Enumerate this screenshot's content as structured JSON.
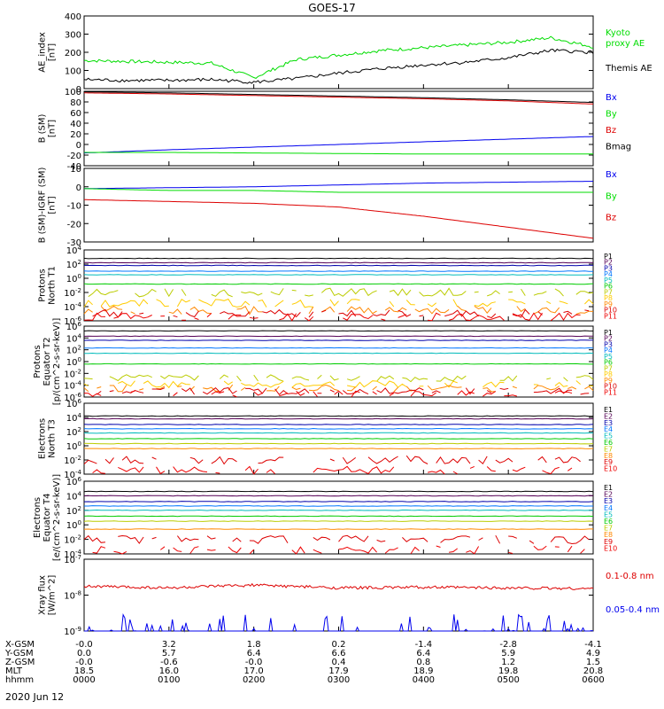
{
  "title": "GOES-17",
  "date": "2020 Jun 12",
  "colors": {
    "black": "#000000",
    "green": "#00dd00",
    "blue": "#0000ee",
    "red": "#dd0000"
  },
  "footer": {
    "row_labels": [
      "X-GSM",
      "Y-GSM",
      "Z-GSM",
      "MLT",
      "hhmm"
    ],
    "columns": [
      [
        "-0.0",
        "0.0",
        "-0.0",
        "18.5",
        "0000"
      ],
      [
        "3.2",
        "5.7",
        "-0.6",
        "16.0",
        "0100"
      ],
      [
        "1.8",
        "6.4",
        "-0.0",
        "17.0",
        "0200"
      ],
      [
        "0.2",
        "6.6",
        "0.4",
        "17.9",
        "0300"
      ],
      [
        "-1.4",
        "6.4",
        "0.8",
        "18.9",
        "0400"
      ],
      [
        "-2.8",
        "5.9",
        "1.2",
        "19.8",
        "0500"
      ],
      [
        "-4.1",
        "4.9",
        "1.5",
        "20.8",
        "0600"
      ]
    ]
  },
  "chart_data": [
    {
      "type": "line",
      "ylabel": [
        "AE_index",
        "[nT]"
      ],
      "ylim": [
        0,
        400
      ],
      "yticks": [
        "400",
        "300",
        "200",
        "100",
        "0"
      ],
      "legend": [
        {
          "text": "Kyoto",
          "color": "#00dd00"
        },
        {
          "text": "proxy AE",
          "color": "#00dd00"
        },
        {
          "text": "Themis AE",
          "color": "#000000"
        }
      ],
      "x": [
        0,
        0.5,
        1,
        1.5,
        2,
        2.5,
        3,
        3.5,
        4,
        4.5,
        5,
        5.5,
        6
      ],
      "series": [
        {
          "name": "Kyoto proxy AE",
          "color": "#00dd00",
          "values": [
            155,
            150,
            145,
            140,
            60,
            160,
            185,
            210,
            225,
            240,
            255,
            280,
            230
          ]
        },
        {
          "name": "Themis AE",
          "color": "#000000",
          "values": [
            50,
            45,
            45,
            50,
            35,
            55,
            85,
            110,
            130,
            145,
            170,
            210,
            200
          ]
        }
      ]
    },
    {
      "type": "line",
      "ylabel": [
        "B (SM)",
        "[nT]"
      ],
      "ylim": [
        -40,
        100
      ],
      "yticks": [
        "100",
        "80",
        "60",
        "40",
        "20",
        "0",
        "-20",
        "-40"
      ],
      "legend": [
        {
          "text": "Bx",
          "color": "#0000ee"
        },
        {
          "text": "By",
          "color": "#00dd00"
        },
        {
          "text": "Bz",
          "color": "#dd0000"
        },
        {
          "text": "Bmag",
          "color": "#000000"
        }
      ],
      "x": [
        0,
        1,
        2,
        3,
        4,
        5,
        6
      ],
      "series": [
        {
          "name": "Bx",
          "color": "#0000ee",
          "values": [
            -16,
            -10,
            -5,
            0,
            5,
            10,
            15
          ]
        },
        {
          "name": "By",
          "color": "#00dd00",
          "values": [
            -15,
            -15,
            -16,
            -17,
            -18,
            -18,
            -18
          ]
        },
        {
          "name": "Bz",
          "color": "#dd0000",
          "values": [
            97,
            95,
            92,
            89,
            86,
            82,
            76
          ]
        },
        {
          "name": "Bmag",
          "color": "#000000",
          "values": [
            99,
            97,
            94,
            91,
            88,
            84,
            79
          ]
        }
      ]
    },
    {
      "type": "line",
      "ylabel": [
        "B (SM)-IGRF (SM)",
        "[nT]"
      ],
      "ylim": [
        -30,
        10
      ],
      "yticks": [
        "10",
        "0",
        "-10",
        "-20",
        "-30"
      ],
      "legend": [
        {
          "text": "Bx",
          "color": "#0000ee"
        },
        {
          "text": "By",
          "color": "#00dd00"
        },
        {
          "text": "Bz",
          "color": "#dd0000"
        }
      ],
      "x": [
        0,
        1,
        2,
        3,
        4,
        5,
        6
      ],
      "series": [
        {
          "name": "Bx",
          "color": "#0000ee",
          "values": [
            -1,
            -0.5,
            0,
            1,
            2,
            2.5,
            3
          ]
        },
        {
          "name": "By",
          "color": "#00dd00",
          "values": [
            -1,
            -2,
            -2,
            -3,
            -3,
            -3,
            -3
          ]
        },
        {
          "name": "Bz",
          "color": "#dd0000",
          "values": [
            -7,
            -8,
            -9,
            -11,
            -16,
            -22,
            -28
          ]
        }
      ]
    },
    {
      "type": "line",
      "ylabel": [
        "Protons",
        "North T1"
      ],
      "log": true,
      "ylim": [
        -6,
        4
      ],
      "yticks": [
        "10^4",
        "10^2",
        "10^0",
        "10^-2",
        "10^-4",
        "10^-6"
      ],
      "channels": [
        {
          "label": "P1",
          "color": "#000000",
          "log": 2.8
        },
        {
          "label": "P2",
          "color": "#550055",
          "log": 2.2
        },
        {
          "label": "P3",
          "color": "#0000aa",
          "log": 1.8
        },
        {
          "label": "P4",
          "color": "#0077ff",
          "log": 1.0
        },
        {
          "label": "P5",
          "color": "#00bbbb",
          "log": 0.5
        },
        {
          "label": "P6",
          "color": "#00cc00",
          "log": -0.8
        },
        {
          "label": "P7",
          "color": "#bbcc00",
          "log": -2.0
        },
        {
          "label": "P8",
          "color": "#ffcc00",
          "log": -3.5
        },
        {
          "label": "P9",
          "color": "#ff8800",
          "log": -4.5
        },
        {
          "label": "P10",
          "color": "#dd0000",
          "log": -5.0
        },
        {
          "label": "P11",
          "color": "#ee0000",
          "log": -5.5
        }
      ]
    },
    {
      "type": "line",
      "ylabel": [
        "Protons",
        "Equator T2",
        "[p/(cm^2-s-sr-keV)]"
      ],
      "log": true,
      "ylim": [
        -6,
        6
      ],
      "yticks": [
        "10^6",
        "10^4",
        "10^2",
        "10^0",
        "10^-2",
        "10^-4",
        "10^-6"
      ],
      "channels": [
        {
          "label": "P1",
          "color": "#000000",
          "log": 5.2
        },
        {
          "label": "P2",
          "color": "#550055",
          "log": 4.3
        },
        {
          "label": "P3",
          "color": "#0000aa",
          "log": 3.6
        },
        {
          "label": "P4",
          "color": "#0077ff",
          "log": 2.3
        },
        {
          "label": "P5",
          "color": "#00bbbb",
          "log": 1.4
        },
        {
          "label": "P6",
          "color": "#00cc00",
          "log": -0.4
        },
        {
          "label": "P7",
          "color": "#bbcc00",
          "log": -2.8
        },
        {
          "label": "P8",
          "color": "#ffcc00",
          "log": -3.8
        },
        {
          "label": "P9",
          "color": "#ff8800",
          "log": -4.5
        },
        {
          "label": "P10",
          "color": "#dd0000",
          "log": -5.0
        },
        {
          "label": "P11",
          "color": "#ee0000",
          "log": -5.5
        }
      ]
    },
    {
      "type": "line",
      "ylabel": [
        "Electrons",
        "North T3"
      ],
      "log": true,
      "ylim": [
        -4,
        6
      ],
      "yticks": [
        "10^6",
        "10^4",
        "10^2",
        "10^0",
        "10^-2",
        "10^-4"
      ],
      "channels": [
        {
          "label": "E1",
          "color": "#000000",
          "log": 4.2
        },
        {
          "label": "E2",
          "color": "#550055",
          "log": 3.8
        },
        {
          "label": "E3",
          "color": "#0000aa",
          "log": 3.0
        },
        {
          "label": "E4",
          "color": "#0077ff",
          "log": 2.4
        },
        {
          "label": "E5",
          "color": "#00bbbb",
          "log": 1.8
        },
        {
          "label": "E6",
          "color": "#00cc00",
          "log": 1.0
        },
        {
          "label": "E7",
          "color": "#bbcc00",
          "log": 0.3
        },
        {
          "label": "E8",
          "color": "#ff8800",
          "log": -0.4
        },
        {
          "label": "E9",
          "color": "#dd0000",
          "log": -2.0
        },
        {
          "label": "E10",
          "color": "#ee0000",
          "log": -3.5
        }
      ]
    },
    {
      "type": "line",
      "ylabel": [
        "Electrons",
        "Equator T4",
        "[e/(cm^2-s-sr-keV)]"
      ],
      "log": true,
      "ylim": [
        -4,
        6
      ],
      "yticks": [
        "10^6",
        "10^4",
        "10^2",
        "10^0",
        "10^-2",
        "10^-4"
      ],
      "channels": [
        {
          "label": "E1",
          "color": "#000000",
          "log": 4.6
        },
        {
          "label": "E2",
          "color": "#550055",
          "log": 4.0
        },
        {
          "label": "E3",
          "color": "#0000aa",
          "log": 3.2
        },
        {
          "label": "E4",
          "color": "#0077ff",
          "log": 2.6
        },
        {
          "label": "E5",
          "color": "#00bbbb",
          "log": 2.0
        },
        {
          "label": "E6",
          "color": "#00cc00",
          "log": 1.2
        },
        {
          "label": "E7",
          "color": "#bbcc00",
          "log": 0.5
        },
        {
          "label": "E8",
          "color": "#ff8800",
          "log": -0.6
        },
        {
          "label": "E9",
          "color": "#dd0000",
          "log": -2.0
        },
        {
          "label": "E10",
          "color": "#ee0000",
          "log": -3.5
        }
      ]
    },
    {
      "type": "line",
      "ylabel": [
        "Xray flux",
        "[W/m^2]"
      ],
      "log": true,
      "ylim": [
        -9,
        -7
      ],
      "yticks": [
        "10^-7",
        "10^-8",
        "10^-9"
      ],
      "legend": [
        {
          "text": "0.1-0.8 nm",
          "color": "#dd0000"
        },
        {
          "text": "0.05-0.4 nm",
          "color": "#0000ee"
        }
      ],
      "series": [
        {
          "name": "0.1-0.8 nm",
          "color": "#dd0000",
          "log_values": [
            -7.75,
            -7.8,
            -7.72,
            -7.8,
            -7.78,
            -7.8,
            -7.82
          ]
        },
        {
          "name": "0.05-0.4 nm",
          "color": "#0000ee",
          "log_values": [
            -9,
            -9,
            -9,
            -9,
            -9,
            -9,
            -9
          ]
        }
      ]
    }
  ]
}
